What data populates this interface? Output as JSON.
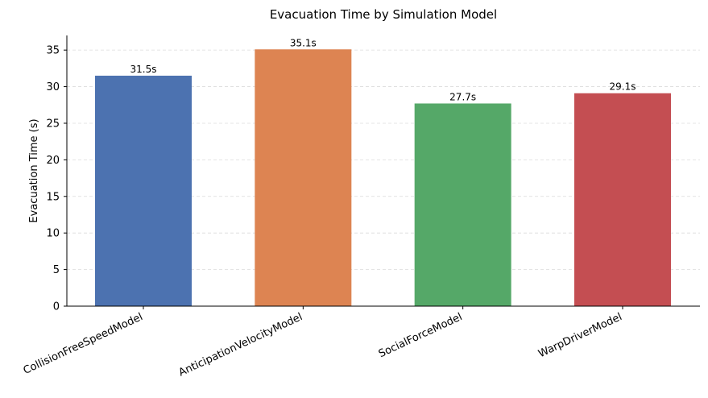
{
  "chart_data": {
    "type": "bar",
    "title": "Evacuation Time by Simulation Model",
    "xlabel": "",
    "ylabel": "Evacuation Time (s)",
    "categories": [
      "CollisionFreeSpeedModel",
      "AnticipationVelocityModel",
      "SocialForceModel",
      "WarpDriverModel"
    ],
    "values": [
      31.5,
      35.1,
      27.7,
      29.1
    ],
    "data_labels": [
      "31.5s",
      "35.1s",
      "27.7s",
      "29.1s"
    ],
    "colors": [
      "#4c72b0",
      "#dd8452",
      "#55a868",
      "#c44e52"
    ],
    "ylim": [
      0,
      37
    ],
    "yticks": [
      0,
      5,
      10,
      15,
      20,
      25,
      30,
      35
    ],
    "grid": "horizontal-dashed",
    "legend": "none"
  }
}
